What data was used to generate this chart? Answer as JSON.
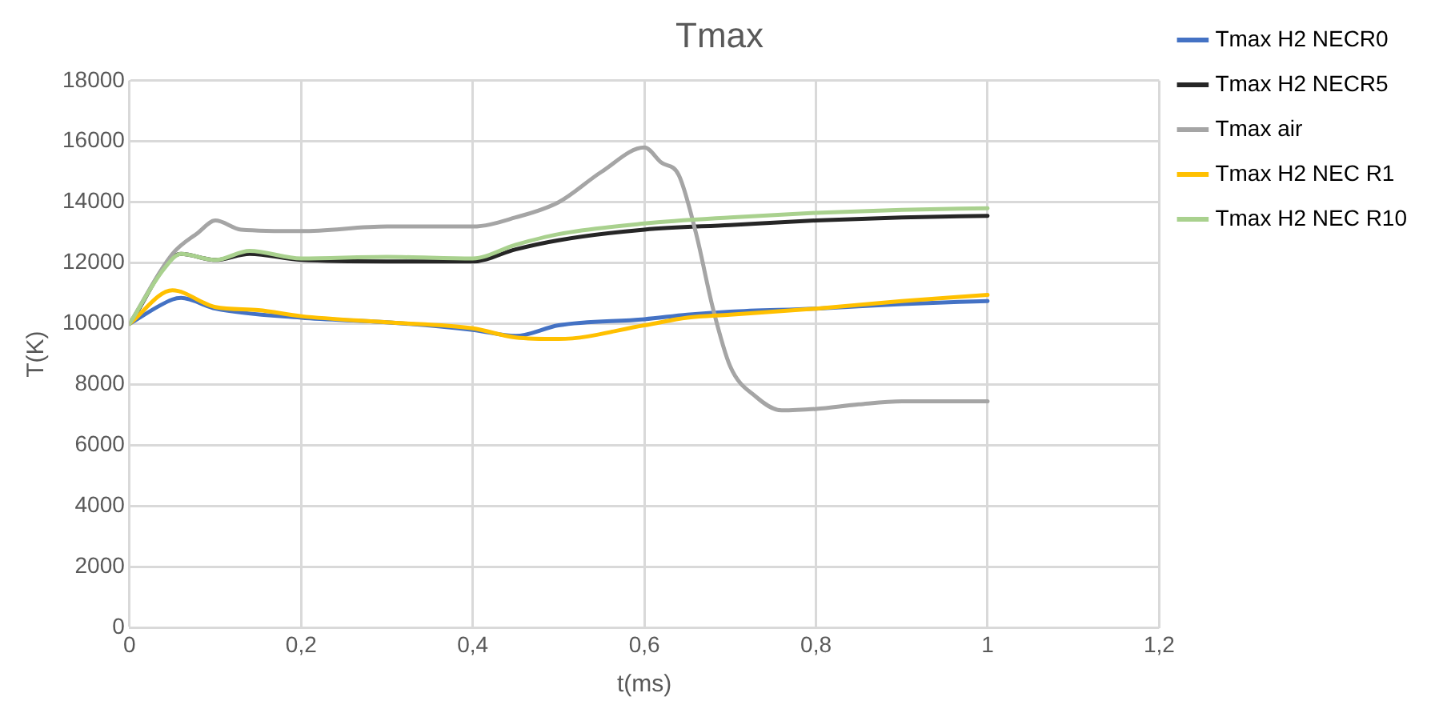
{
  "chart_data": {
    "type": "line",
    "title": "Tmax",
    "xlabel": "t(ms)",
    "ylabel": "T(K)",
    "xlim": [
      0,
      1.2
    ],
    "xticks": [
      0,
      {
        "value": 0.2,
        "label": "0,2"
      },
      {
        "value": 0.4,
        "label": "0,4"
      },
      {
        "value": 0.6,
        "label": "0,6"
      },
      {
        "value": 0.8,
        "label": "0,8"
      },
      1,
      {
        "value": 1.2,
        "label": "1,2"
      }
    ],
    "ylim": [
      0,
      18000
    ],
    "yticks": [
      0,
      2000,
      4000,
      6000,
      8000,
      10000,
      12000,
      14000,
      16000,
      18000
    ],
    "grid": true,
    "legend": "top right",
    "marker": "none",
    "line_style": "solid",
    "series": [
      {
        "name": "Tmax H2 NECR0",
        "color": "#4472c4",
        "x": [
          0,
          0.05,
          0.06,
          0.1,
          0.2,
          0.3,
          0.4,
          0.45,
          0.5,
          0.6,
          0.65,
          0.7,
          0.8,
          0.9,
          1
        ],
        "values": [
          10000,
          10800,
          10850,
          10500,
          10200,
          10050,
          9800,
          9600,
          9950,
          10150,
          10300,
          10400,
          10500,
          10650,
          10750
        ]
      },
      {
        "name": "Tmax H2 NECR5",
        "color": "#262626",
        "x": [
          0,
          0.06,
          0.1,
          0.14,
          0.2,
          0.3,
          0.4,
          0.45,
          0.5,
          0.6,
          0.7,
          0.8,
          0.9,
          1
        ],
        "values": [
          10000,
          12300,
          12100,
          12300,
          12100,
          12050,
          12050,
          12450,
          12750,
          13100,
          13250,
          13400,
          13500,
          13550
        ]
      },
      {
        "name": "Tmax air",
        "color": "#a5a5a5",
        "x": [
          0,
          0.05,
          0.08,
          0.1,
          0.13,
          0.2,
          0.3,
          0.4,
          0.45,
          0.5,
          0.55,
          0.6,
          0.62,
          0.64,
          0.66,
          0.68,
          0.7,
          0.73,
          0.76,
          0.8,
          0.85,
          0.9,
          1
        ],
        "values": [
          10000,
          12300,
          13000,
          13400,
          13100,
          13050,
          13200,
          13200,
          13500,
          14000,
          15000,
          15800,
          15300,
          14900,
          13000,
          10500,
          8600,
          7600,
          7150,
          7200,
          7350,
          7450,
          7450
        ]
      },
      {
        "name": "Tmax H2 NEC R1",
        "color": "#ffc000",
        "x": [
          0,
          0.05,
          0.1,
          0.15,
          0.2,
          0.3,
          0.4,
          0.45,
          0.5,
          0.6,
          0.65,
          0.7,
          0.8,
          0.9,
          1
        ],
        "values": [
          10000,
          11100,
          10550,
          10450,
          10250,
          10050,
          9850,
          9550,
          9500,
          9950,
          10200,
          10300,
          10500,
          10750,
          10950
        ]
      },
      {
        "name": "Tmax H2 NEC R10",
        "color": "#a9d18e",
        "x": [
          0,
          0.04,
          0.06,
          0.1,
          0.14,
          0.2,
          0.3,
          0.4,
          0.45,
          0.5,
          0.6,
          0.7,
          0.8,
          0.9,
          1
        ],
        "values": [
          10000,
          11800,
          12300,
          12100,
          12400,
          12150,
          12200,
          12150,
          12600,
          12950,
          13300,
          13500,
          13650,
          13750,
          13800
        ]
      }
    ]
  }
}
